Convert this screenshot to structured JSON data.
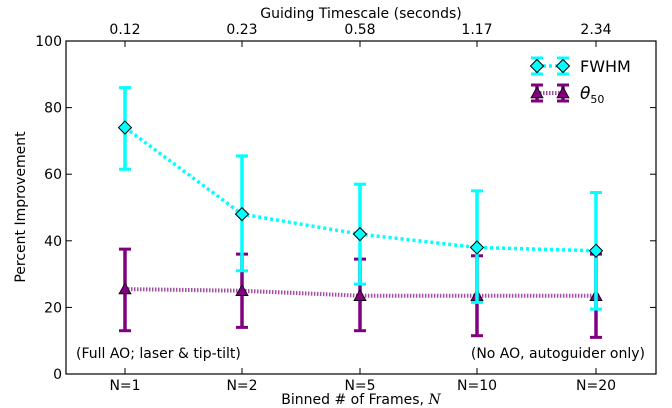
{
  "chart_data": {
    "type": "line",
    "xlabel_text": "Binned # of Frames, ",
    "xlabel_var": "N",
    "top_axis_label": "Guiding Timescale (seconds)",
    "ylabel": "Percent Improvement",
    "ylim": [
      0,
      100
    ],
    "yticks": [
      0,
      20,
      40,
      60,
      80,
      100
    ],
    "categories": [
      "N=1",
      "N=2",
      "N=5",
      "N=10",
      "N=20"
    ],
    "top_ticks": [
      "0.12",
      "0.23",
      "0.58",
      "1.17",
      "2.34"
    ],
    "series": [
      {
        "name": "FWHM",
        "marker": "diamond",
        "color": "#00ffff",
        "values": [
          74,
          48,
          42,
          38,
          37
        ],
        "err_low": [
          61.5,
          31,
          27,
          21.5,
          19.5
        ],
        "err_high": [
          86,
          65.5,
          57,
          55,
          54.5
        ]
      },
      {
        "name": "θ50",
        "label_main": "θ",
        "label_sub": "50",
        "marker": "triangle",
        "color": "#800080",
        "values": [
          25.5,
          25,
          23.5,
          23.5,
          23.5
        ],
        "err_low": [
          13,
          14,
          13,
          11.5,
          11
        ],
        "err_high": [
          37.5,
          36,
          34.5,
          35.5,
          36
        ]
      }
    ],
    "annotations": {
      "left": "(Full AO; laser & tip-tilt)",
      "right": "(No AO, autoguider only)"
    },
    "legend_position": "top-right",
    "grid": false
  }
}
